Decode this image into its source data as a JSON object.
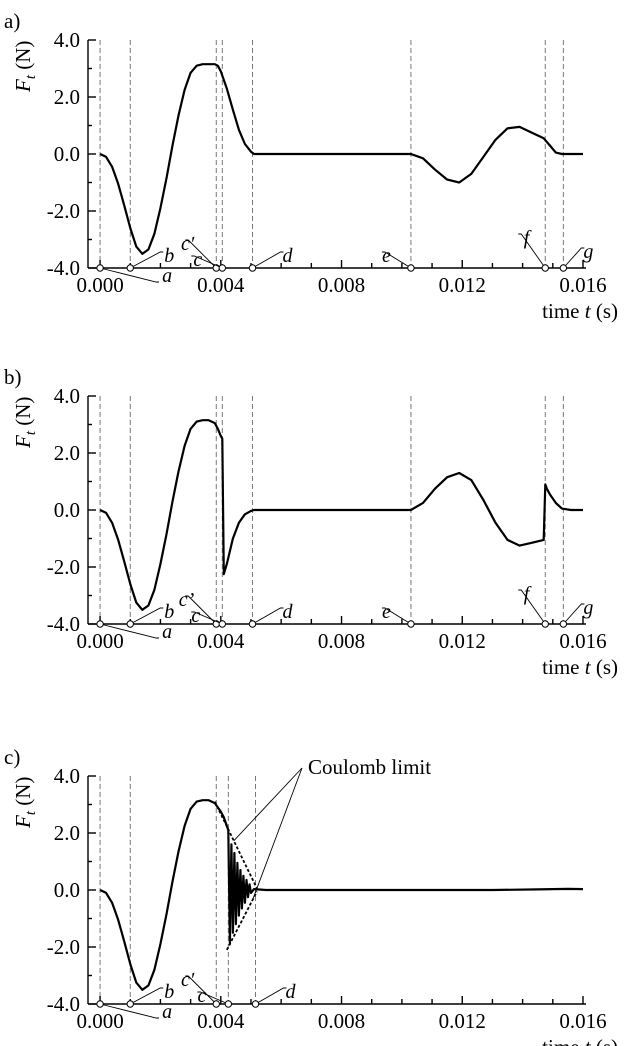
{
  "chart_data": [
    {
      "type": "line",
      "panel_label": "a)",
      "ylabel_symbol": "F",
      "ylabel_sub": "t",
      "ylabel_unit": " (N)",
      "xlabel_prefix": "time ",
      "xlabel_symbol": "t",
      "xlabel_unit": " (s)",
      "xlim": [
        -0.0004,
        0.0161
      ],
      "ylim": [
        -4.0,
        4.0
      ],
      "xticks": [
        0.0,
        0.004,
        0.008,
        0.012,
        0.016
      ],
      "xtick_labels": [
        "0.000",
        "0.004",
        "0.008",
        "0.012",
        "0.016"
      ],
      "yticks": [
        -4.0,
        -2.0,
        0.0,
        2.0,
        4.0
      ],
      "ytick_labels": [
        "-4.0",
        "-2.0",
        "0.0",
        "2.0",
        "4.0"
      ],
      "events": [
        {
          "label": "a",
          "t": 0.0
        },
        {
          "label": "b",
          "t": 0.001
        },
        {
          "label": "c′",
          "t": 0.00385
        },
        {
          "label": "c",
          "t": 0.00405
        },
        {
          "label": "d",
          "t": 0.00505
        },
        {
          "label": "e",
          "t": 0.0103
        },
        {
          "label": "f",
          "t": 0.01475
        },
        {
          "label": "g",
          "t": 0.01535
        }
      ],
      "series": [
        {
          "x": [
            0.0,
            0.0002,
            0.0004,
            0.0006,
            0.0008,
            0.001,
            0.0012,
            0.0014,
            0.0016,
            0.0018,
            0.002,
            0.0022,
            0.0024,
            0.0026,
            0.0028,
            0.003,
            0.0032,
            0.0034,
            0.0036,
            0.0038,
            0.0039,
            0.004,
            0.0042,
            0.0044,
            0.0046,
            0.0048,
            0.005,
            0.0051,
            0.006,
            0.007,
            0.008,
            0.009,
            0.01,
            0.0103,
            0.0107,
            0.0111,
            0.0115,
            0.0119,
            0.0123,
            0.0127,
            0.0131,
            0.0135,
            0.0139,
            0.0143,
            0.0147,
            0.0149,
            0.0151,
            0.0153,
            0.0156,
            0.016
          ],
          "y": [
            0.0,
            -0.1,
            -0.45,
            -1.05,
            -1.8,
            -2.6,
            -3.25,
            -3.5,
            -3.35,
            -2.8,
            -1.9,
            -0.85,
            0.3,
            1.35,
            2.25,
            2.85,
            3.1,
            3.15,
            3.15,
            3.15,
            3.1,
            2.9,
            2.3,
            1.55,
            0.85,
            0.35,
            0.08,
            0.0,
            0.0,
            0.0,
            0.0,
            0.0,
            0.0,
            0.0,
            -0.15,
            -0.55,
            -0.9,
            -1.0,
            -0.7,
            -0.1,
            0.5,
            0.9,
            0.95,
            0.75,
            0.55,
            0.3,
            0.05,
            0.0,
            0.0,
            0.0
          ]
        }
      ],
      "annotations": []
    },
    {
      "type": "line",
      "panel_label": "b)",
      "ylabel_symbol": "F",
      "ylabel_sub": "t",
      "ylabel_unit": " (N)",
      "xlabel_prefix": "time ",
      "xlabel_symbol": "t",
      "xlabel_unit": " (s)",
      "xlim": [
        -0.0004,
        0.0161
      ],
      "ylim": [
        -4.0,
        4.0
      ],
      "xticks": [
        0.0,
        0.004,
        0.008,
        0.012,
        0.016
      ],
      "xtick_labels": [
        "0.000",
        "0.004",
        "0.008",
        "0.012",
        "0.016"
      ],
      "yticks": [
        -4.0,
        -2.0,
        0.0,
        2.0,
        4.0
      ],
      "ytick_labels": [
        "-4.0",
        "-2.0",
        "0.0",
        "2.0",
        "4.0"
      ],
      "events": [
        {
          "label": "a",
          "t": 0.0
        },
        {
          "label": "b",
          "t": 0.001
        },
        {
          "label": "c’",
          "t": 0.00385
        },
        {
          "label": "c",
          "t": 0.00405
        },
        {
          "label": "d",
          "t": 0.00505
        },
        {
          "label": "e",
          "t": 0.0103
        },
        {
          "label": "f",
          "t": 0.01475
        },
        {
          "label": "g",
          "t": 0.01535
        }
      ],
      "series": [
        {
          "x": [
            0.0,
            0.0002,
            0.0004,
            0.0006,
            0.0008,
            0.001,
            0.0012,
            0.0014,
            0.0016,
            0.0018,
            0.002,
            0.0022,
            0.0024,
            0.0026,
            0.0028,
            0.003,
            0.0032,
            0.0034,
            0.0036,
            0.0038,
            0.0039,
            0.004,
            0.00405,
            0.0041,
            0.0042,
            0.0044,
            0.0046,
            0.0048,
            0.005,
            0.0051,
            0.006,
            0.007,
            0.008,
            0.009,
            0.01,
            0.0103,
            0.0107,
            0.0111,
            0.0115,
            0.0119,
            0.0123,
            0.0127,
            0.0131,
            0.0135,
            0.0139,
            0.0143,
            0.0147,
            0.01475,
            0.0148,
            0.0149,
            0.0151,
            0.0153,
            0.0156,
            0.016
          ],
          "y": [
            0.0,
            -0.1,
            -0.45,
            -1.05,
            -1.8,
            -2.6,
            -3.25,
            -3.5,
            -3.35,
            -2.8,
            -1.9,
            -0.85,
            0.3,
            1.35,
            2.25,
            2.85,
            3.1,
            3.15,
            3.15,
            3.05,
            2.85,
            2.6,
            2.5,
            -2.25,
            -1.9,
            -1.0,
            -0.45,
            -0.15,
            -0.03,
            0.0,
            0.0,
            0.0,
            0.0,
            0.0,
            0.0,
            0.0,
            0.25,
            0.75,
            1.15,
            1.3,
            1.05,
            0.35,
            -0.45,
            -1.05,
            -1.25,
            -1.15,
            -1.05,
            0.9,
            0.75,
            0.55,
            0.25,
            0.05,
            0.0,
            0.0
          ]
        }
      ],
      "annotations": []
    },
    {
      "type": "line",
      "panel_label": "c)",
      "ylabel_symbol": "F",
      "ylabel_sub": "t",
      "ylabel_unit": " (N)",
      "xlabel_prefix": "time ",
      "xlabel_symbol": "t",
      "xlabel_unit": " (s)",
      "xlim": [
        -0.0004,
        0.0161
      ],
      "ylim": [
        -4.0,
        4.0
      ],
      "xticks": [
        0.0,
        0.004,
        0.008,
        0.012,
        0.016
      ],
      "xtick_labels": [
        "0.000",
        "0.004",
        "0.008",
        "0.012",
        "0.016"
      ],
      "yticks": [
        -4.0,
        -2.0,
        0.0,
        2.0,
        4.0
      ],
      "ytick_labels": [
        "-4.0",
        "-2.0",
        "0.0",
        "2.0",
        "4.0"
      ],
      "events": [
        {
          "label": "a",
          "t": 0.0
        },
        {
          "label": "b",
          "t": 0.001
        },
        {
          "label": "c′",
          "t": 0.00385
        },
        {
          "label": "c",
          "t": 0.00425
        },
        {
          "label": "d",
          "t": 0.00515
        }
      ],
      "series": [
        {
          "x": [
            0.0,
            0.0002,
            0.0004,
            0.0006,
            0.0008,
            0.001,
            0.0012,
            0.0014,
            0.0016,
            0.0018,
            0.002,
            0.0022,
            0.0024,
            0.0026,
            0.0028,
            0.003,
            0.0032,
            0.0034,
            0.0036,
            0.0038,
            0.0039,
            0.004,
            0.0041,
            0.0042,
            0.00425,
            0.0043,
            0.00435,
            0.0044,
            0.00445,
            0.0045,
            0.00455,
            0.0046,
            0.00465,
            0.0047,
            0.00475,
            0.0048,
            0.00485,
            0.0049,
            0.00495,
            0.005,
            0.0051,
            0.0055,
            0.007,
            0.009,
            0.011,
            0.013,
            0.0145,
            0.0155,
            0.016
          ],
          "y": [
            0.0,
            -0.1,
            -0.45,
            -1.05,
            -1.8,
            -2.6,
            -3.25,
            -3.5,
            -3.35,
            -2.8,
            -1.9,
            -0.85,
            0.3,
            1.35,
            2.25,
            2.85,
            3.1,
            3.15,
            3.15,
            3.05,
            2.9,
            2.75,
            2.55,
            2.25,
            2.1,
            -1.9,
            1.6,
            -1.5,
            1.3,
            -1.2,
            0.95,
            -0.9,
            0.7,
            -0.65,
            0.5,
            -0.45,
            0.35,
            -0.25,
            0.2,
            -0.1,
            0.03,
            0.0,
            0.0,
            0.0,
            0.0,
            0.0,
            0.02,
            0.04,
            0.03
          ]
        },
        {
          "name": "Coulomb limit upper",
          "style": "dotted",
          "x": [
            0.0038,
            0.0052
          ],
          "y": [
            3.1,
            0.05
          ]
        },
        {
          "name": "Coulomb limit lower",
          "style": "dotted",
          "x": [
            0.0042,
            0.0052
          ],
          "y": [
            -2.1,
            -0.05
          ]
        }
      ],
      "annotations": [
        {
          "text": "Coulomb limit"
        }
      ]
    }
  ]
}
